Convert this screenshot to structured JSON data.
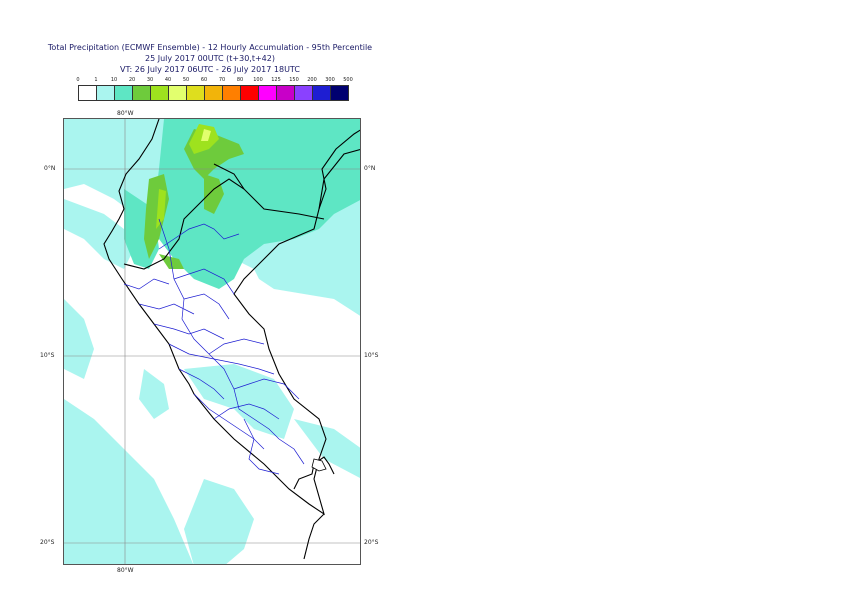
{
  "title": {
    "line1": "Total Precipitation (ECMWF Ensemble) - 12 Hourly Accumulation - 95th Percentile",
    "line2": "25 July 2017 00UTC (t+30,t+42)",
    "line3": "VT: 26 July 2017 06UTC - 26 July 2017 18UTC"
  },
  "legend": {
    "labels": [
      "0",
      "1",
      "10",
      "20",
      "30",
      "40",
      "50",
      "60",
      "70",
      "80",
      "100",
      "125",
      "150",
      "200",
      "300",
      "500"
    ],
    "colors": [
      "#ffffff",
      "#aaf5ef",
      "#5ee6c4",
      "#6ecb3c",
      "#9ee21e",
      "#e2ff6e",
      "#dede1e",
      "#f2b40a",
      "#ff7f00",
      "#ff0000",
      "#ff00ff",
      "#c800c8",
      "#8a41ff",
      "#1e1ed2",
      "#000070"
    ]
  },
  "map": {
    "lon_labels_top": [
      "80°W"
    ],
    "lon_labels_bottom": [
      "80°W"
    ],
    "lat_labels_left": [
      "0°N",
      "10°S",
      "20°S"
    ],
    "lat_labels_right": [
      "0°N",
      "10°S",
      "20°S"
    ]
  }
}
